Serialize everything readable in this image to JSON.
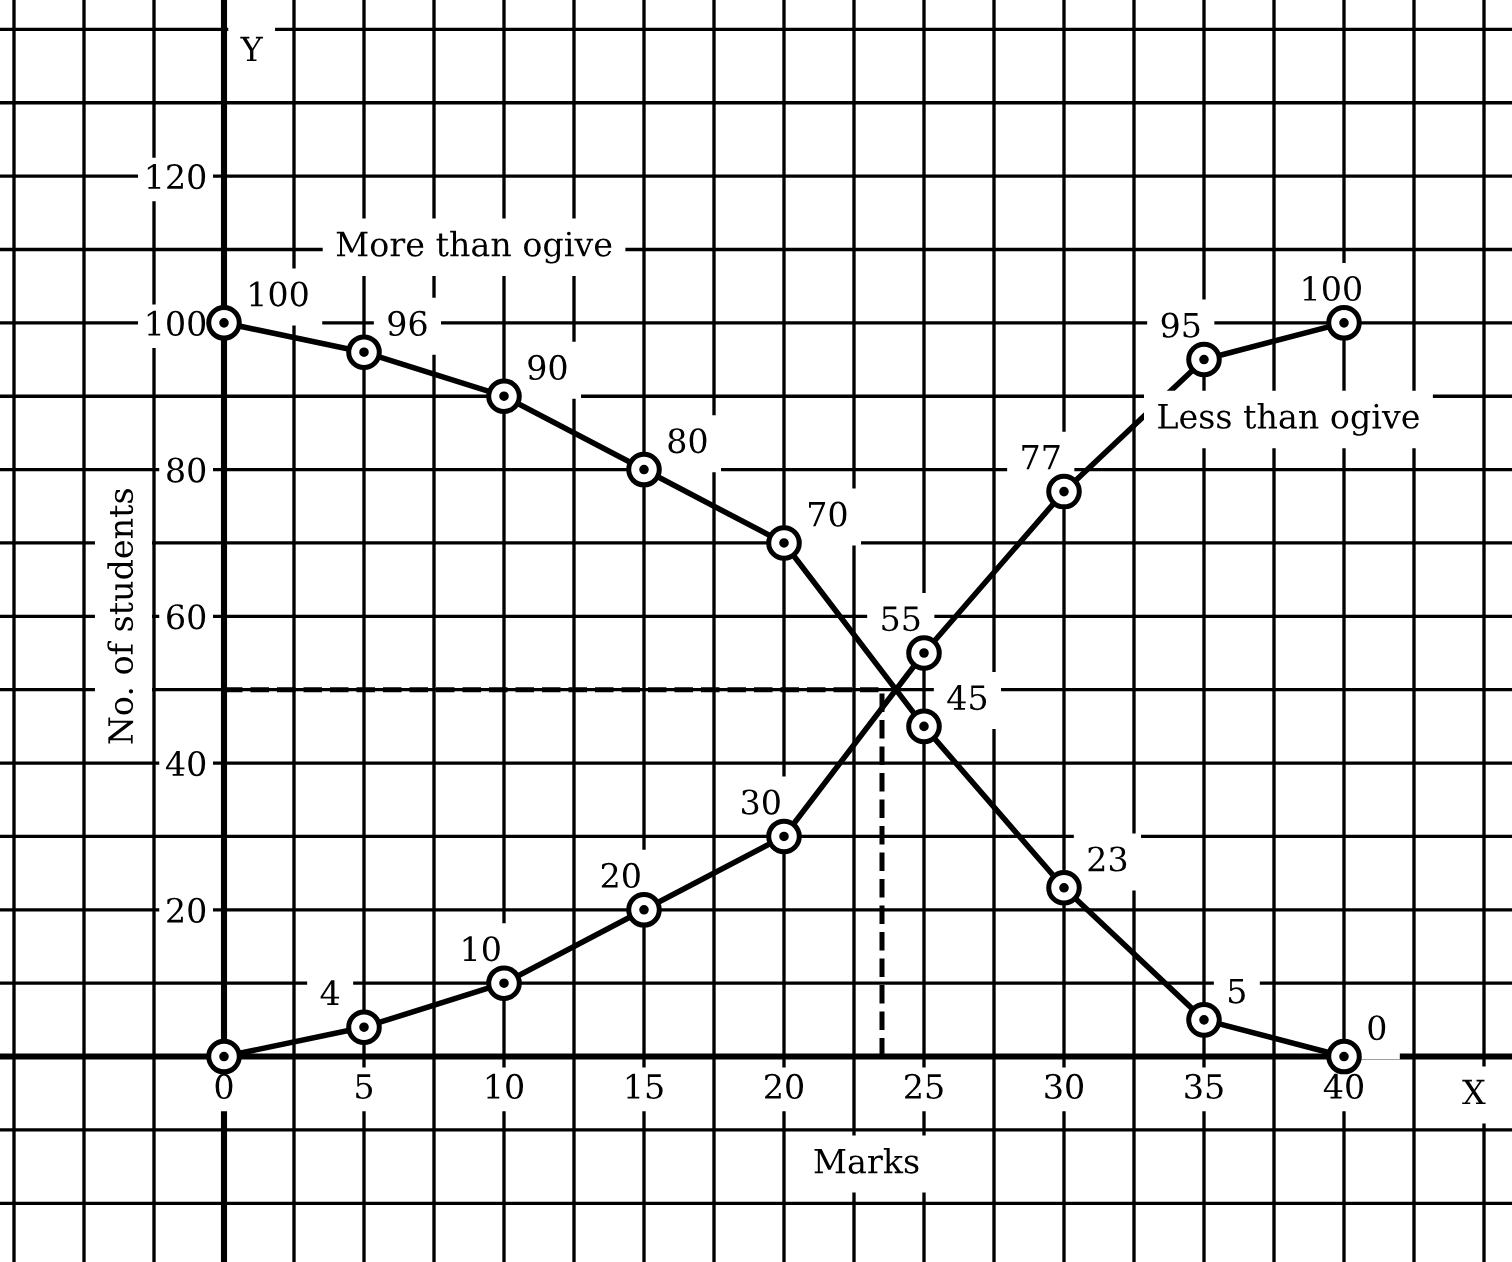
{
  "chart_data": {
    "type": "line",
    "xlabel": "Marks",
    "ylabel": "No. of students",
    "x": [
      0,
      5,
      10,
      15,
      20,
      25,
      30,
      35,
      40
    ],
    "series": [
      {
        "name": "More than ogive",
        "color": "#000000",
        "values": [
          100,
          96,
          90,
          80,
          70,
          45,
          23,
          5,
          0
        ],
        "value_labels": [
          "100",
          "96",
          "90",
          "80",
          "70",
          "45",
          "23",
          "5",
          "0"
        ]
      },
      {
        "name": "Less than ogive",
        "color": "#000000",
        "values": [
          0,
          4,
          10,
          20,
          30,
          55,
          77,
          95,
          100
        ],
        "value_labels": [
          null,
          "4",
          "10",
          "20",
          "30",
          "55",
          "77",
          "95",
          "100"
        ]
      }
    ],
    "xlim": [
      -8,
      46
    ],
    "ylim": [
      -28,
      144
    ],
    "xticks": [
      {
        "value": -7.5,
        "label": null
      },
      {
        "value": -5,
        "label": null
      },
      {
        "value": -2.5,
        "label": null
      },
      0,
      {
        "value": 2.5,
        "label": null
      },
      5,
      {
        "value": 7.5,
        "label": null
      },
      10,
      {
        "value": 12.5,
        "label": null
      },
      15,
      {
        "value": 17.5,
        "label": null
      },
      20,
      {
        "value": 22.5,
        "label": null
      },
      25,
      {
        "value": 27.5,
        "label": null
      },
      30,
      {
        "value": 32.5,
        "label": null
      },
      35,
      {
        "value": 37.5,
        "label": null
      },
      40,
      {
        "value": 42.5,
        "label": null
      },
      {
        "value": 45,
        "label": null
      }
    ],
    "yticks": [
      {
        "value": -20,
        "label": null
      },
      {
        "value": -10,
        "label": null
      },
      {
        "value": 0,
        "label": null
      },
      {
        "value": 10,
        "label": null
      },
      20,
      {
        "value": 30,
        "label": null
      },
      40,
      {
        "value": 50,
        "label": null
      },
      60,
      {
        "value": 70,
        "label": null
      },
      80,
      {
        "value": 90,
        "label": null
      },
      100,
      {
        "value": 110,
        "label": null
      },
      120,
      {
        "value": 130,
        "label": null
      },
      {
        "value": 140,
        "label": null
      }
    ],
    "ref_lines": [
      {
        "axis": "y",
        "value": 50,
        "line_style": "dashed"
      },
      {
        "axis": "x",
        "value": 23.5,
        "line_style": "dashed"
      }
    ],
    "annotations": [
      "X",
      "Y"
    ],
    "grid": true,
    "marker": "circle",
    "line_style": "solid",
    "legend": false
  }
}
